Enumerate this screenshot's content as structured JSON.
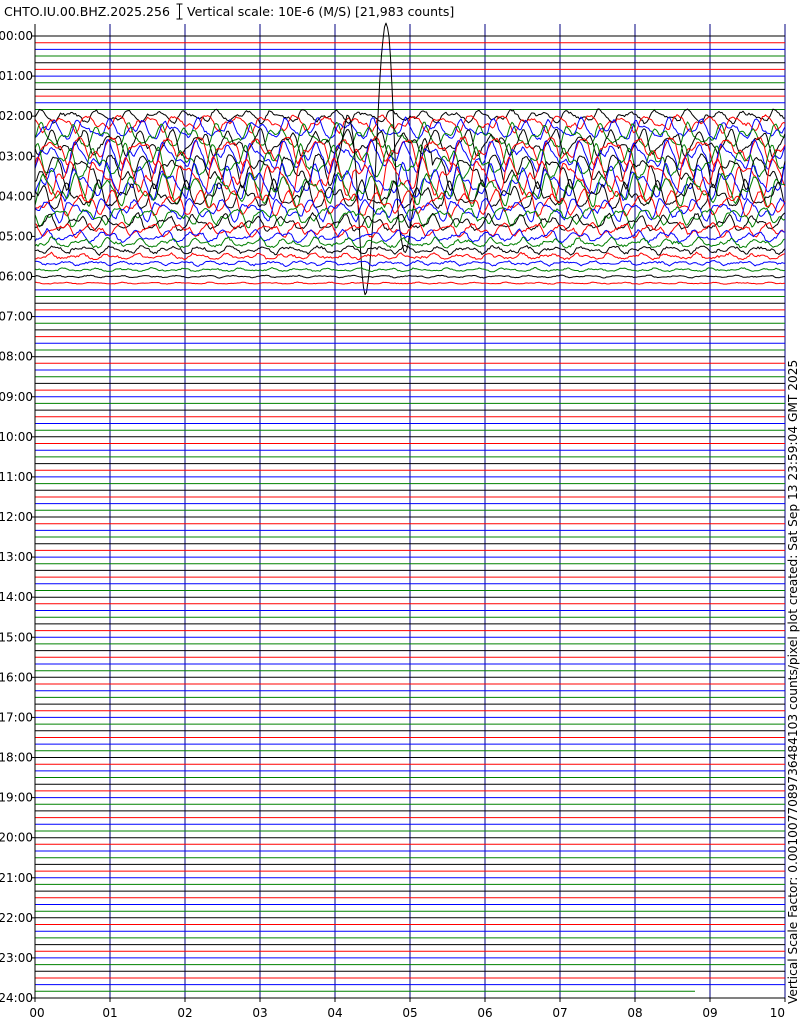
{
  "header": {
    "station": "CHTO.IU.00.BHZ.2025.256",
    "scale_label": "Vertical scale: 10E-6 (M/S) [21,983 counts]"
  },
  "side_note": "Vertical Scale Factor: 0.0010077089736484103 counts/pixel plot created: Sat Sep 13 23:59:04 GMT 2025",
  "colors": {
    "trace_cycle": [
      "#000000",
      "#ff0000",
      "#0000ff",
      "#008000"
    ],
    "grid": "#000080",
    "axis": "#000000"
  },
  "chart_data": {
    "type": "line",
    "subtype": "helicorder",
    "title": "",
    "xlabel": "",
    "ylabel": "",
    "x_ticks": [
      "00",
      "01",
      "02",
      "03",
      "04",
      "05",
      "06",
      "07",
      "08",
      "09",
      "10"
    ],
    "y_ticks": [
      "00:00",
      "01:00",
      "02:00",
      "03:00",
      "04:00",
      "05:00",
      "06:00",
      "07:00",
      "08:00",
      "09:00",
      "10:00",
      "11:00",
      "12:00",
      "13:00",
      "14:00",
      "15:00",
      "16:00",
      "17:00",
      "18:00",
      "19:00",
      "20:00",
      "21:00",
      "22:00",
      "23:00",
      "24:00"
    ],
    "x_range_minutes": [
      0,
      10
    ],
    "y_range_hours": [
      0,
      24
    ],
    "lines_per_hour": 6,
    "vertical_grid": true,
    "event": {
      "start_hour": 1.9,
      "end_hour": 6.2,
      "peak_hour": 3.5,
      "large_wave_trace_hour": 3.3333,
      "large_wave_minutes": [
        4.0,
        5.3
      ]
    },
    "trace_end": {
      "last_line_hour": 23.8333,
      "end_minute": 8.8
    }
  }
}
